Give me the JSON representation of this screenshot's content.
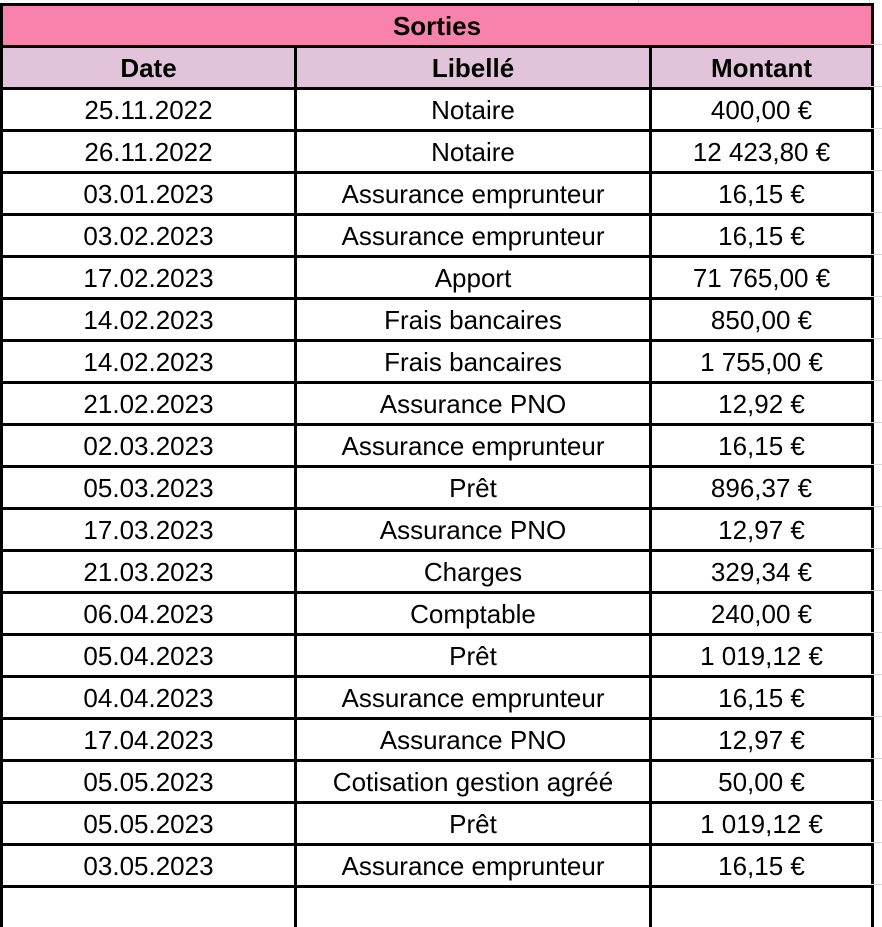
{
  "table": {
    "title": "Sorties",
    "columns": [
      "Date",
      "Libellé",
      "Montant"
    ],
    "rows": [
      [
        "25.11.2022",
        "Notaire",
        "400,00 €"
      ],
      [
        "26.11.2022",
        "Notaire",
        "12 423,80 €"
      ],
      [
        "03.01.2023",
        "Assurance emprunteur",
        "16,15 €"
      ],
      [
        "03.02.2023",
        "Assurance emprunteur",
        "16,15 €"
      ],
      [
        "17.02.2023",
        "Apport",
        "71 765,00 €"
      ],
      [
        "14.02.2023",
        "Frais bancaires",
        "850,00 €"
      ],
      [
        "14.02.2023",
        "Frais bancaires",
        "1 755,00 €"
      ],
      [
        "21.02.2023",
        "Assurance PNO",
        "12,92 €"
      ],
      [
        "02.03.2023",
        "Assurance emprunteur",
        "16,15 €"
      ],
      [
        "05.03.2023",
        "Prêt",
        "896,37 €"
      ],
      [
        "17.03.2023",
        "Assurance PNO",
        "12,97 €"
      ],
      [
        "21.03.2023",
        "Charges",
        "329,34 €"
      ],
      [
        "06.04.2023",
        "Comptable",
        "240,00 €"
      ],
      [
        "05.04.2023",
        "Prêt",
        "1 019,12 €"
      ],
      [
        "04.04.2023",
        "Assurance emprunteur",
        "16,15 €"
      ],
      [
        "17.04.2023",
        "Assurance PNO",
        "12,97 €"
      ],
      [
        "05.05.2023",
        "Cotisation gestion agréé",
        "50,00 €"
      ],
      [
        "05.05.2023",
        "Prêt",
        "1 019,12 €"
      ],
      [
        "03.05.2023",
        "Assurance emprunteur",
        "16,15 €"
      ]
    ],
    "colors": {
      "title_bg": "#F982AD",
      "header_bg": "#E2C4DA",
      "border": "#000000",
      "gridline": "#D6D6D6"
    }
  }
}
